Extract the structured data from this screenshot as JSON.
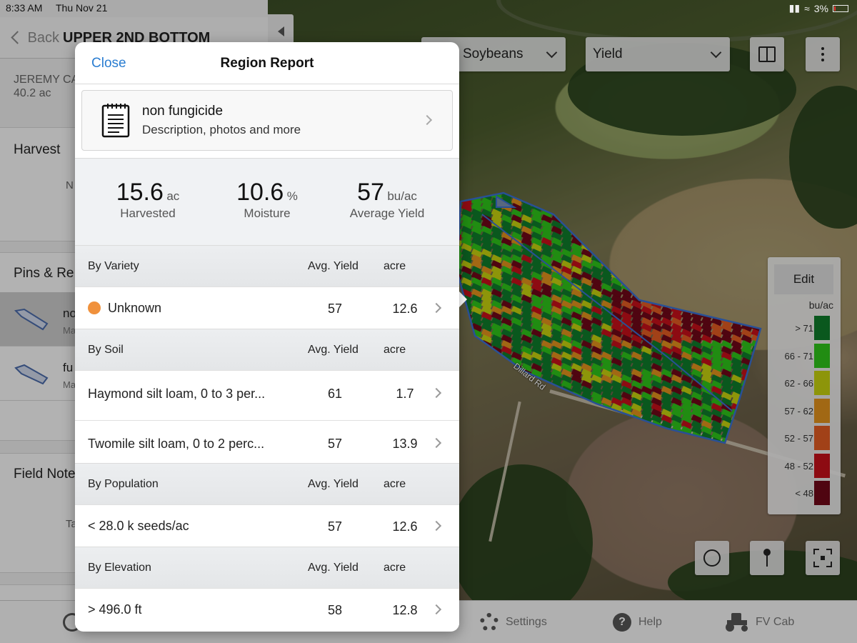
{
  "status_bar": {
    "time": "8:33 AM",
    "date": "Thu Nov 21",
    "battery": "3%"
  },
  "left_panel": {
    "back_label": "Back",
    "field_title": "UPPER 2ND BOTTOM",
    "farm_name": "JEREMY CA",
    "farm_area": "40.2 ac",
    "harvest_heading": "Harvest",
    "harvest_partial": "N",
    "pins_heading": "Pins & Re",
    "regions": [
      {
        "name": "no",
        "sub": "Ma"
      },
      {
        "name": "fu",
        "sub": "Ma"
      }
    ],
    "field_notes_heading": "Field Note",
    "field_notes_partial": "Ta"
  },
  "map": {
    "crop_select": "Soybeans",
    "layer_select": "Yield",
    "legend": {
      "edit_label": "Edit",
      "unit": "bu/ac",
      "ranges": [
        {
          "label": "> 71",
          "color": "#0f7a2a"
        },
        {
          "label": "66 - 71",
          "color": "#2ec21a"
        },
        {
          "label": "62 - 66",
          "color": "#c4cf0e"
        },
        {
          "label": "57 - 62",
          "color": "#e0901c"
        },
        {
          "label": "52 - 57",
          "color": "#df5a22"
        },
        {
          "label": "48 - 52",
          "color": "#c4101a"
        },
        {
          "label": "< 48",
          "color": "#6e0718"
        }
      ]
    },
    "road_label": "Dillard Rd"
  },
  "tab_bar": {
    "settings": "Settings",
    "help": "Help",
    "fv_cab": "FV Cab"
  },
  "modal": {
    "close_label": "Close",
    "title": "Region Report",
    "card": {
      "name": "non fungicide",
      "description": "Description, photos and more"
    },
    "stats": [
      {
        "value": "15.6",
        "unit": "ac",
        "label": "Harvested"
      },
      {
        "value": "10.6",
        "unit": "%",
        "label": "Moisture"
      },
      {
        "value": "57",
        "unit": "bu/ac",
        "label": "Average Yield"
      }
    ],
    "col_avg": "Avg. Yield",
    "col_acre": "acre",
    "sections": {
      "variety": {
        "heading": "By Variety",
        "rows": [
          {
            "name": "Unknown",
            "avg": "57",
            "acre": "12.6",
            "dot_color": "#f0913c"
          }
        ]
      },
      "soil": {
        "heading": "By Soil",
        "rows": [
          {
            "name": "Haymond silt loam, 0 to 3 per...",
            "avg": "61",
            "acre": "1.7"
          },
          {
            "name": "Twomile silt loam, 0 to 2 perc...",
            "avg": "57",
            "acre": "13.9"
          }
        ]
      },
      "population": {
        "heading": "By Population",
        "rows": [
          {
            "name": "< 28.0 k seeds/ac",
            "avg": "57",
            "acre": "12.6"
          }
        ]
      },
      "elevation": {
        "heading": "By Elevation",
        "rows": [
          {
            "name": "> 496.0 ft",
            "avg": "58",
            "acre": "12.8"
          }
        ]
      }
    }
  }
}
